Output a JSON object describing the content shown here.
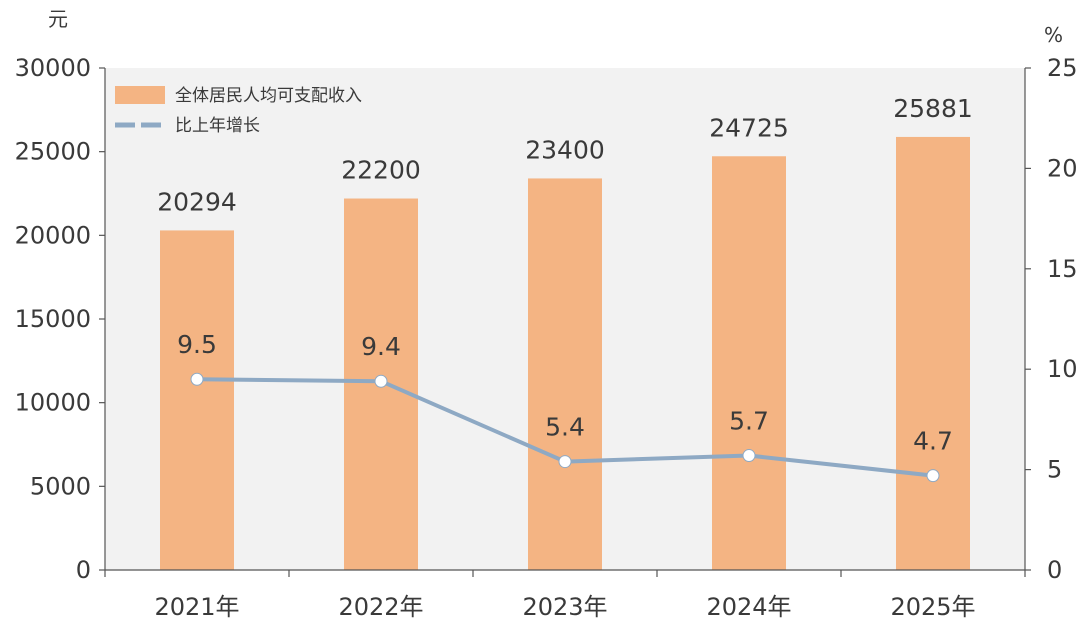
{
  "chart_data": {
    "type": "bar",
    "categories": [
      "2021年",
      "2022年",
      "2023年",
      "2024年",
      "2025年"
    ],
    "series": [
      {
        "name": "全体居民人均可支配收入",
        "type": "bar",
        "axis": "left",
        "values": [
          20294,
          22200,
          23400,
          24725,
          25881
        ],
        "labels": [
          "20294",
          "22200",
          "23400",
          "24725",
          "25881"
        ],
        "color": "#F4B483"
      },
      {
        "name": "比上年增长",
        "type": "line",
        "axis": "right",
        "values": [
          9.5,
          9.4,
          5.4,
          5.7,
          4.7
        ],
        "labels": [
          "9.5",
          "9.4",
          "5.4",
          "5.7",
          "4.7"
        ],
        "color": "#8EA9C4"
      }
    ],
    "y_left": {
      "unit": "元",
      "min": 0,
      "max": 30000,
      "ticks": [
        "0",
        "5000",
        "10000",
        "15000",
        "20000",
        "25000",
        "30000"
      ]
    },
    "y_right": {
      "unit": "%",
      "min": 0,
      "max": 25,
      "ticks": [
        "0",
        "5",
        "10",
        "15",
        "20",
        "25"
      ]
    },
    "plot_background": "#F2F2F2",
    "grid": false,
    "legend_position": "top-left"
  }
}
